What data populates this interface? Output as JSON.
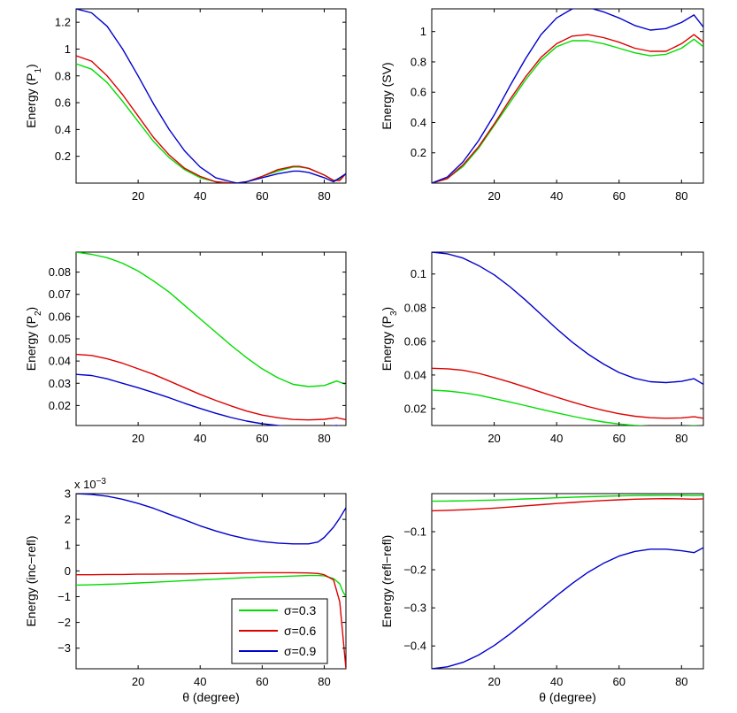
{
  "figure": {
    "xlabel": "θ (degree)",
    "legend": [
      {
        "label": "σ=0.3",
        "color": "#00dd00"
      },
      {
        "label": "σ=0.6",
        "color": "#dd0000"
      },
      {
        "label": "σ=0.9",
        "color": "#0000cc"
      }
    ]
  },
  "chart_data": [
    {
      "type": "line",
      "id": "p1",
      "title": "",
      "ylabel": "Energy (P",
      "ylabel_sub": "1",
      "ylabel_close": ")",
      "xlabel": "",
      "xlim": [
        0,
        87
      ],
      "ylim": [
        0,
        1.3
      ],
      "xticks": [
        20,
        40,
        60,
        80
      ],
      "yticks": [
        0.2,
        0.4,
        0.6,
        0.8,
        1,
        1.2
      ],
      "x": [
        0,
        5,
        10,
        15,
        20,
        25,
        30,
        35,
        40,
        45,
        50,
        52,
        55,
        60,
        65,
        70,
        72,
        75,
        80,
        83,
        85,
        87
      ],
      "series": [
        {
          "name": "σ=0.3",
          "color": "#00dd00",
          "values": [
            0.89,
            0.85,
            0.75,
            0.61,
            0.46,
            0.31,
            0.19,
            0.1,
            0.04,
            0.01,
            0.0,
            0.0,
            0.01,
            0.05,
            0.09,
            0.12,
            0.12,
            0.11,
            0.06,
            0.02,
            0.03,
            0.07
          ]
        },
        {
          "name": "σ=0.6",
          "color": "#dd0000",
          "values": [
            0.95,
            0.91,
            0.8,
            0.66,
            0.5,
            0.34,
            0.21,
            0.11,
            0.05,
            0.01,
            0.0,
            0.0,
            0.01,
            0.05,
            0.1,
            0.125,
            0.125,
            0.11,
            0.06,
            0.02,
            0.02,
            0.07
          ]
        },
        {
          "name": "σ=0.9",
          "color": "#0000cc",
          "values": [
            1.3,
            1.27,
            1.17,
            1.0,
            0.8,
            0.59,
            0.4,
            0.24,
            0.12,
            0.04,
            0.01,
            0.0,
            0.01,
            0.04,
            0.07,
            0.09,
            0.09,
            0.08,
            0.04,
            0.01,
            0.04,
            0.07
          ]
        }
      ]
    },
    {
      "type": "line",
      "id": "sv",
      "title": "",
      "ylabel": "Energy (SV)",
      "ylabel_sub": "",
      "ylabel_close": "",
      "xlabel": "",
      "xlim": [
        0,
        87
      ],
      "ylim": [
        0,
        1.15
      ],
      "xticks": [
        20,
        40,
        60,
        80
      ],
      "yticks": [
        0.2,
        0.4,
        0.6,
        0.8,
        1
      ],
      "x": [
        0,
        5,
        10,
        15,
        20,
        25,
        30,
        35,
        40,
        45,
        50,
        55,
        60,
        65,
        70,
        75,
        80,
        84,
        87
      ],
      "series": [
        {
          "name": "σ=0.3",
          "color": "#00dd00",
          "values": [
            0.0,
            0.03,
            0.11,
            0.23,
            0.38,
            0.53,
            0.68,
            0.81,
            0.9,
            0.94,
            0.94,
            0.92,
            0.89,
            0.86,
            0.84,
            0.85,
            0.89,
            0.95,
            0.9
          ]
        },
        {
          "name": "σ=0.6",
          "color": "#dd0000",
          "values": [
            0.0,
            0.03,
            0.12,
            0.24,
            0.39,
            0.55,
            0.7,
            0.83,
            0.92,
            0.97,
            0.98,
            0.96,
            0.93,
            0.89,
            0.87,
            0.87,
            0.92,
            0.98,
            0.93
          ]
        },
        {
          "name": "σ=0.9",
          "color": "#0000cc",
          "values": [
            0.0,
            0.04,
            0.14,
            0.28,
            0.45,
            0.64,
            0.82,
            0.98,
            1.09,
            1.15,
            1.16,
            1.13,
            1.09,
            1.04,
            1.01,
            1.02,
            1.06,
            1.11,
            1.03
          ]
        }
      ]
    },
    {
      "type": "line",
      "id": "p2",
      "title": "",
      "ylabel": "Energy (P",
      "ylabel_sub": "2",
      "ylabel_close": ")",
      "xlabel": "",
      "xlim": [
        0,
        87
      ],
      "ylim": [
        0.011,
        0.089
      ],
      "xticks": [
        20,
        40,
        60,
        80
      ],
      "yticks": [
        0.02,
        0.03,
        0.04,
        0.05,
        0.06,
        0.07,
        0.08
      ],
      "x": [
        0,
        5,
        10,
        15,
        20,
        25,
        30,
        35,
        40,
        45,
        50,
        55,
        60,
        65,
        70,
        75,
        80,
        84,
        87
      ],
      "series": [
        {
          "name": "σ=0.3",
          "color": "#00dd00",
          "values": [
            0.089,
            0.088,
            0.0865,
            0.084,
            0.0805,
            0.076,
            0.071,
            0.065,
            0.059,
            0.053,
            0.047,
            0.0415,
            0.0365,
            0.0325,
            0.0295,
            0.0285,
            0.029,
            0.031,
            0.0295
          ]
        },
        {
          "name": "σ=0.6",
          "color": "#dd0000",
          "values": [
            0.043,
            0.0425,
            0.041,
            0.039,
            0.0365,
            0.034,
            0.031,
            0.028,
            0.025,
            0.0223,
            0.0198,
            0.0175,
            0.0157,
            0.0145,
            0.0137,
            0.0135,
            0.0138,
            0.0145,
            0.0136
          ]
        },
        {
          "name": "σ=0.9",
          "color": "#0000cc",
          "values": [
            0.034,
            0.0335,
            0.032,
            0.03,
            0.028,
            0.0258,
            0.0235,
            0.021,
            0.0187,
            0.0165,
            0.0146,
            0.013,
            0.0118,
            0.011,
            0.0105,
            0.0103,
            0.0104,
            0.011,
            0.0102
          ]
        }
      ]
    },
    {
      "type": "line",
      "id": "p3",
      "title": "",
      "ylabel": "Energy (P",
      "ylabel_sub": "3",
      "ylabel_close": ")",
      "xlabel": "",
      "xlim": [
        0,
        87
      ],
      "ylim": [
        0.01,
        0.113
      ],
      "xticks": [
        20,
        40,
        60,
        80
      ],
      "yticks": [
        0.02,
        0.04,
        0.06,
        0.08,
        0.1
      ],
      "x": [
        0,
        5,
        10,
        15,
        20,
        25,
        30,
        35,
        40,
        45,
        50,
        55,
        60,
        65,
        70,
        75,
        80,
        84,
        87
      ],
      "series": [
        {
          "name": "σ=0.3",
          "color": "#00dd00",
          "values": [
            0.031,
            0.0305,
            0.0295,
            0.028,
            0.026,
            0.024,
            0.0218,
            0.0196,
            0.0175,
            0.0155,
            0.0137,
            0.0121,
            0.0109,
            0.0101,
            0.0096,
            0.0095,
            0.0096,
            0.0099,
            0.0096
          ]
        },
        {
          "name": "σ=0.6",
          "color": "#dd0000",
          "values": [
            0.044,
            0.0437,
            0.0428,
            0.041,
            0.0385,
            0.0358,
            0.0328,
            0.0298,
            0.0268,
            0.024,
            0.0213,
            0.019,
            0.017,
            0.0155,
            0.0146,
            0.0143,
            0.0145,
            0.0152,
            0.0143
          ]
        },
        {
          "name": "σ=0.9",
          "color": "#0000cc",
          "values": [
            0.113,
            0.112,
            0.1095,
            0.105,
            0.0995,
            0.0925,
            0.0845,
            0.076,
            0.0675,
            0.0595,
            0.0525,
            0.0465,
            0.0415,
            0.038,
            0.036,
            0.0355,
            0.0362,
            0.0378,
            0.0345
          ]
        }
      ]
    },
    {
      "type": "line",
      "id": "increfl",
      "title": "",
      "ylabel": "Energy (inc−refl)",
      "ylabel_sub": "",
      "ylabel_close": "",
      "exponent_prefix": "x 10",
      "exponent_power": "−3",
      "xlabel": "θ (degree)",
      "xlim": [
        0,
        87
      ],
      "ylim": [
        -3.8,
        3.0
      ],
      "xticks": [
        20,
        40,
        60,
        80
      ],
      "yticks": [
        -3,
        -2,
        -1,
        0,
        1,
        2,
        3
      ],
      "has_legend": true,
      "x": [
        0,
        5,
        10,
        15,
        20,
        25,
        30,
        35,
        40,
        45,
        50,
        55,
        60,
        65,
        70,
        75,
        78,
        80,
        83,
        85,
        86,
        87
      ],
      "series": [
        {
          "name": "σ=0.3",
          "color": "#00dd00",
          "values": [
            -0.55,
            -0.54,
            -0.52,
            -0.5,
            -0.47,
            -0.44,
            -0.41,
            -0.38,
            -0.35,
            -0.32,
            -0.29,
            -0.26,
            -0.24,
            -0.22,
            -0.2,
            -0.18,
            -0.18,
            -0.19,
            -0.3,
            -0.5,
            -0.8,
            -1.0
          ]
        },
        {
          "name": "σ=0.6",
          "color": "#dd0000",
          "values": [
            -0.15,
            -0.15,
            -0.14,
            -0.14,
            -0.13,
            -0.13,
            -0.12,
            -0.12,
            -0.11,
            -0.1,
            -0.09,
            -0.08,
            -0.07,
            -0.07,
            -0.07,
            -0.08,
            -0.1,
            -0.15,
            -0.35,
            -1.2,
            -2.5,
            -3.8
          ]
        },
        {
          "name": "σ=0.9",
          "color": "#0000cc",
          "values": [
            3.0,
            2.97,
            2.9,
            2.78,
            2.62,
            2.43,
            2.2,
            1.98,
            1.75,
            1.55,
            1.38,
            1.24,
            1.14,
            1.08,
            1.05,
            1.05,
            1.12,
            1.3,
            1.7,
            2.05,
            2.25,
            2.45
          ]
        }
      ]
    },
    {
      "type": "line",
      "id": "reflrefl",
      "title": "",
      "ylabel": "Energy (refl−refl)",
      "ylabel_sub": "",
      "ylabel_close": "",
      "xlabel": "θ (degree)",
      "xlim": [
        0,
        87
      ],
      "ylim": [
        -0.46,
        0.0
      ],
      "xticks": [
        20,
        40,
        60,
        80
      ],
      "yticks": [
        -0.4,
        -0.3,
        -0.2,
        -0.1
      ],
      "x": [
        0,
        5,
        10,
        15,
        20,
        25,
        30,
        35,
        40,
        45,
        50,
        55,
        60,
        65,
        70,
        75,
        80,
        84,
        87
      ],
      "series": [
        {
          "name": "σ=0.3",
          "color": "#00dd00",
          "values": [
            -0.02,
            -0.0195,
            -0.019,
            -0.018,
            -0.017,
            -0.0155,
            -0.014,
            -0.0125,
            -0.011,
            -0.0095,
            -0.0082,
            -0.007,
            -0.006,
            -0.0052,
            -0.0046,
            -0.0043,
            -0.0045,
            -0.005,
            -0.0045
          ]
        },
        {
          "name": "σ=0.6",
          "color": "#dd0000",
          "values": [
            -0.045,
            -0.044,
            -0.0425,
            -0.0405,
            -0.038,
            -0.0352,
            -0.032,
            -0.029,
            -0.026,
            -0.0232,
            -0.0205,
            -0.0182,
            -0.0162,
            -0.0147,
            -0.0137,
            -0.0133,
            -0.0136,
            -0.0147,
            -0.0137
          ]
        },
        {
          "name": "σ=0.9",
          "color": "#0000cc",
          "values": [
            -0.46,
            -0.455,
            -0.443,
            -0.424,
            -0.399,
            -0.369,
            -0.336,
            -0.302,
            -0.268,
            -0.236,
            -0.207,
            -0.183,
            -0.164,
            -0.152,
            -0.146,
            -0.146,
            -0.15,
            -0.155,
            -0.142
          ]
        }
      ]
    }
  ]
}
